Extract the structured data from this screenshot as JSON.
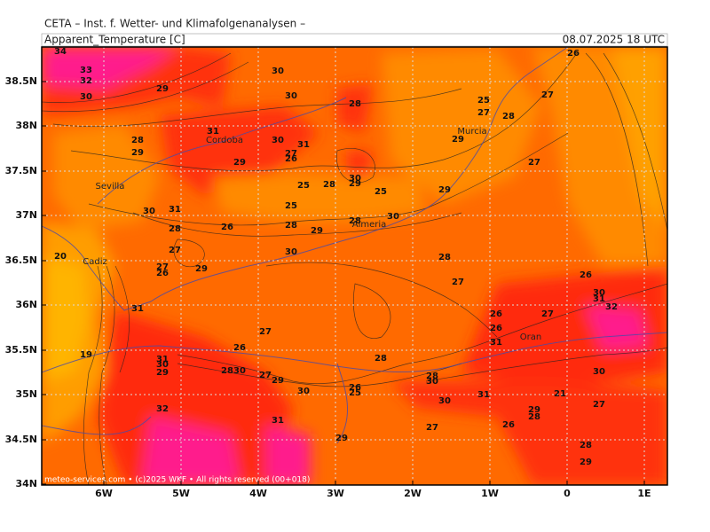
{
  "header": {
    "title": "CETA – Inst. f. Wetter- und Klimafolgenanalysen –",
    "field": "Apparent_Temperature [C]",
    "time": "08.07.2025 18 UTC"
  },
  "lat_labels": [
    "38.5N",
    "38N",
    "37.5N",
    "37N",
    "36.5N",
    "36N",
    "35.5N",
    "35N",
    "34.5N",
    "34N"
  ],
  "lon_labels": [
    "6W",
    "5W",
    "4W",
    "3W",
    "2W",
    "1W",
    "0",
    "1E"
  ],
  "places": [
    "Cordoba",
    "Sevilla",
    "Murcia",
    "Almeria",
    "Cadiz",
    "Oran"
  ],
  "contour_labels": [
    "34",
    "33",
    "32",
    "30",
    "29",
    "30",
    "30",
    "28",
    "31",
    "28",
    "29",
    "30",
    "31",
    "27",
    "26",
    "29",
    "30",
    "29",
    "28",
    "25",
    "25",
    "30",
    "31",
    "25",
    "28",
    "26",
    "28",
    "29",
    "28",
    "30",
    "29",
    "25",
    "27",
    "28",
    "29",
    "27",
    "27",
    "26",
    "20",
    "27",
    "26",
    "29",
    "27",
    "30",
    "28",
    "27",
    "26",
    "30",
    "31",
    "32",
    "27",
    "26",
    "26",
    "31",
    "31",
    "27",
    "26",
    "19",
    "31",
    "30",
    "29",
    "28",
    "30",
    "27",
    "29",
    "28",
    "30",
    "26",
    "25",
    "28",
    "30",
    "30",
    "31",
    "21",
    "27",
    "30",
    "29",
    "28",
    "26",
    "27",
    "32",
    "31",
    "29",
    "28",
    "29"
  ],
  "footer": "meteo-services.com • (c)2025 WKF • All rights reserved (00+018)"
}
